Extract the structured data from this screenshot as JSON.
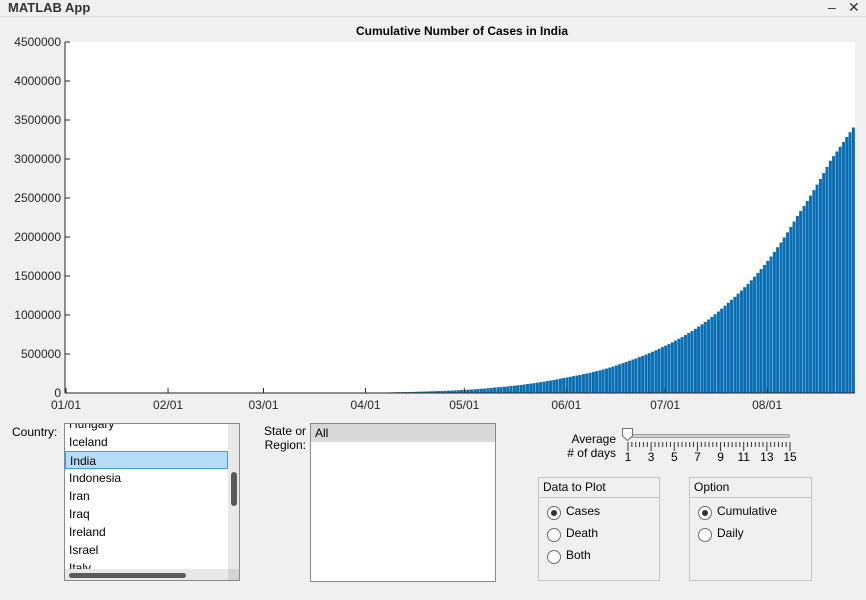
{
  "window": {
    "title": "MATLAB App",
    "minimize_icon": "minimize-icon",
    "close_icon": "close-icon"
  },
  "chart_data": {
    "type": "bar",
    "title": "Cumulative Number of Cases in India",
    "xlabel": "",
    "ylabel": "",
    "x_tick_labels": [
      "01/01",
      "02/01",
      "03/01",
      "04/01",
      "05/01",
      "06/01",
      "07/01",
      "08/01"
    ],
    "y_tick_labels": [
      "0",
      "500000",
      "1000000",
      "1500000",
      "2000000",
      "2500000",
      "3000000",
      "3500000",
      "4000000",
      "4500000"
    ],
    "ylim": [
      0,
      4500000
    ],
    "xlim": [
      "2020-01-01",
      "2020-08-27"
    ],
    "grid": false,
    "color": "#0072bd",
    "x": [
      "2020-03-01",
      "2020-03-10",
      "2020-03-20",
      "2020-03-31",
      "2020-04-10",
      "2020-04-20",
      "2020-04-30",
      "2020-05-10",
      "2020-05-20",
      "2020-05-31",
      "2020-06-10",
      "2020-06-20",
      "2020-06-30",
      "2020-07-10",
      "2020-07-20",
      "2020-07-31",
      "2020-08-10",
      "2020-08-20",
      "2020-08-25"
    ],
    "values": [
      3,
      45,
      200,
      1400,
      7600,
      18500,
      35000,
      67000,
      112000,
      190500,
      277000,
      411000,
      585000,
      820000,
      1155000,
      1638000,
      2268000,
      2975000,
      3280000
    ]
  },
  "country": {
    "label": "Country:",
    "items": [
      "Hungary",
      "Iceland",
      "India",
      "Indonesia",
      "Iran",
      "Iraq",
      "Ireland",
      "Israel",
      "Italy"
    ],
    "selected": "India"
  },
  "state": {
    "label_line1": "State or",
    "label_line2": "Region:",
    "items": [
      "All"
    ],
    "selected": "All"
  },
  "average": {
    "label_line1": "Average",
    "label_line2": "# of days",
    "value": 1,
    "min": 1,
    "max": 15,
    "tick_labels": [
      "1",
      "3",
      "5",
      "7",
      "9",
      "11",
      "13",
      "15"
    ]
  },
  "data_to_plot": {
    "title": "Data to Plot",
    "options": [
      "Cases",
      "Death",
      "Both"
    ],
    "selected": "Cases"
  },
  "option": {
    "title": "Option",
    "options": [
      "Cumulative",
      "Daily"
    ],
    "selected": "Cumulative"
  }
}
